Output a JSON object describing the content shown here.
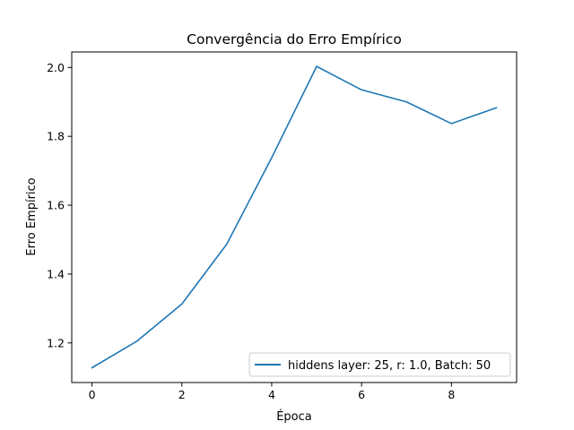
{
  "chart_data": {
    "type": "line",
    "title": "Convergência do Erro Empírico",
    "xlabel": "Época",
    "ylabel": "Erro Empírico",
    "x": [
      0,
      1,
      2,
      3,
      4,
      5,
      6,
      7,
      8,
      9
    ],
    "xticks": [
      0,
      2,
      4,
      6,
      8
    ],
    "yticks": [
      1.2,
      1.4,
      1.6,
      1.8,
      2.0
    ],
    "ytick_labels": [
      "1.2",
      "1.4",
      "1.6",
      "1.8",
      "2.0"
    ],
    "xlim": [
      -0.45,
      9.45
    ],
    "ylim": [
      1.085,
      2.045
    ],
    "grid": false,
    "legend_position": "lower right",
    "series": [
      {
        "name": "hiddens layer: 25, r: 1.0, Batch: 50",
        "color": "#1f77b4",
        "values": [
          1.128,
          1.205,
          1.313,
          1.487,
          1.738,
          2.003,
          1.935,
          1.9,
          1.837,
          1.883
        ]
      }
    ]
  }
}
